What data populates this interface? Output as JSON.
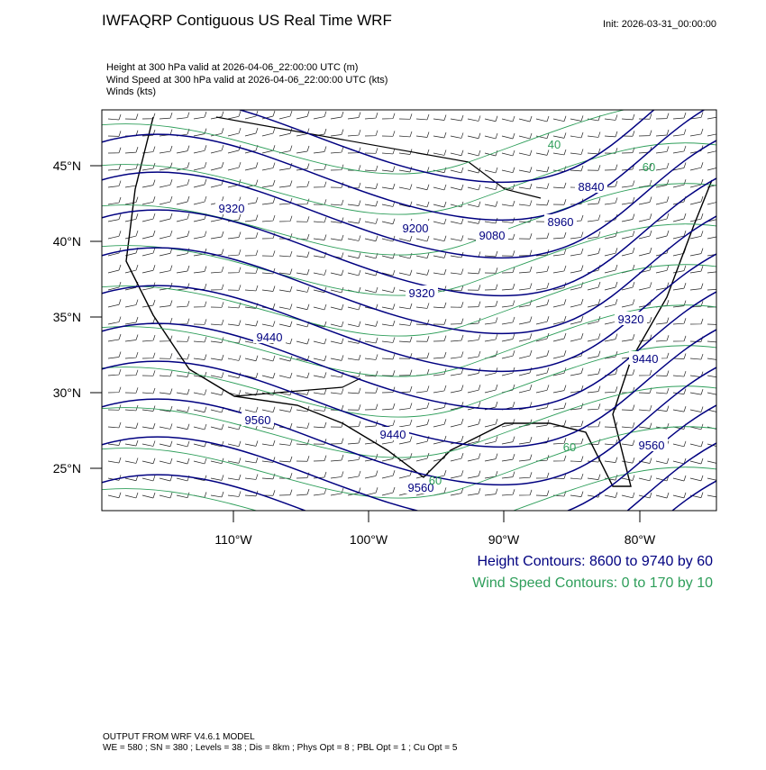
{
  "header": {
    "title": "IWFAQRP Contiguous US Real Time WRF",
    "init": "Init: 2026-03-31_00:00:00"
  },
  "fields": [
    "Height at 300 hPa valid at 2026-04-06_22:00:00 UTC   (m)",
    "Wind Speed at 300 hPa valid at 2026-04-06_22:00:00 UTC   (kts)",
    "Winds   (kts)"
  ],
  "map": {
    "lat_labels": [
      "45°N",
      "40°N",
      "35°N",
      "30°N",
      "25°N"
    ],
    "lon_labels": [
      "110°W",
      "100°W",
      "90°W",
      "80°W"
    ],
    "height_labels": [
      "9320",
      "9200",
      "9080",
      "9320",
      "9440",
      "9560",
      "9440",
      "9560",
      "8840",
      "8960",
      "9320",
      "9440",
      "9560"
    ],
    "speed_labels": [
      "40",
      "60",
      "60",
      "60"
    ]
  },
  "legend": {
    "height": "Height Contours: 8600 to 9740 by 60",
    "speed": "Wind Speed Contours: 0 to 170 by 10"
  },
  "footer": [
    "OUTPUT FROM WRF V4.6.1 MODEL",
    "WE = 580 ; SN = 380 ; Levels = 38 ; Dis = 8km ; Phys Opt = 8 ; PBL Opt = 1 ; Cu Opt = 5"
  ]
}
